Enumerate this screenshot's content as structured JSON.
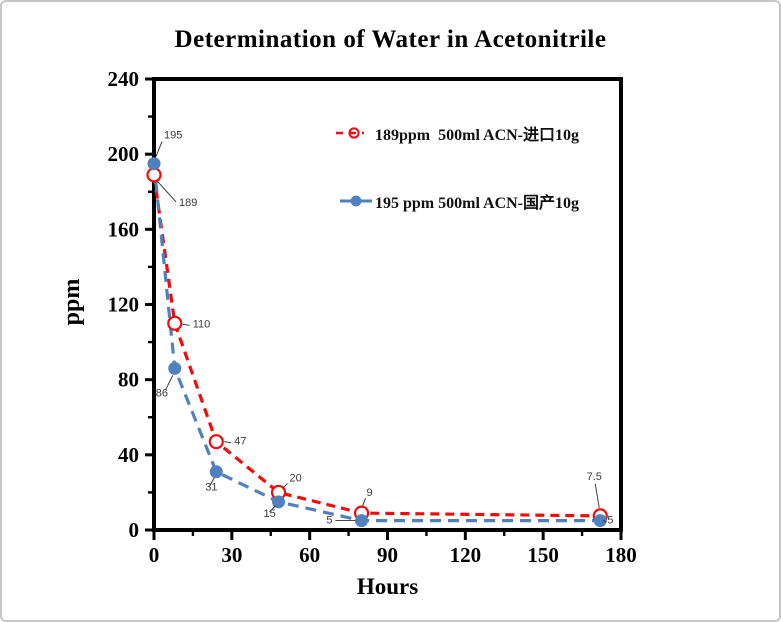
{
  "chart_data": {
    "type": "line",
    "title": "Determination of Water in Acetonitrile",
    "xlabel": "Hours",
    "ylabel": "ppm",
    "xlim": [
      0,
      180
    ],
    "ylim": [
      0,
      240
    ],
    "x_major_ticks": [
      0,
      30,
      60,
      90,
      120,
      150,
      180
    ],
    "x_minor_step": 15,
    "y_major_ticks": [
      0,
      40,
      80,
      120,
      160,
      200,
      240
    ],
    "y_minor_step": 20,
    "grid": false,
    "legend_position": "inside-upper-right",
    "x": [
      0,
      8,
      24,
      48,
      80,
      172
    ],
    "series": [
      {
        "name": "189ppm  500ml ACN-进口10g",
        "color": "#f00c0c",
        "marker": "open-circle",
        "line_style": "dashed",
        "values": [
          189,
          110,
          47,
          20,
          9,
          7.5
        ],
        "labels": [
          "189",
          "110",
          "47",
          "20",
          "9",
          "7.5"
        ]
      },
      {
        "name": "195 ppm 500ml ACN-国产10g",
        "color": "#4f81bd",
        "marker": "filled-circle",
        "line_style": "dashed",
        "values": [
          195,
          86,
          31,
          15,
          5,
          5
        ],
        "labels": [
          "195",
          "86",
          "31",
          "15",
          "5",
          "5"
        ]
      }
    ]
  },
  "colors": {
    "axis": "#000000",
    "data_label": "#3a3a3a",
    "leader_line": "#2b2b2b",
    "card_border": "#c6c6c6",
    "background": "#ffffff"
  }
}
